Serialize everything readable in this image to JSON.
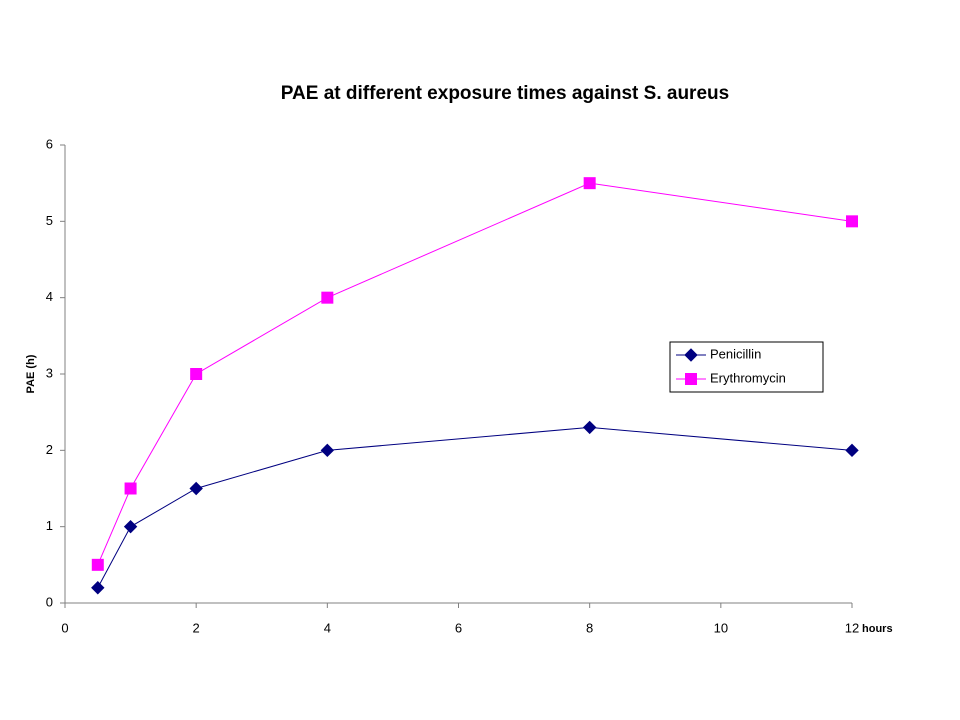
{
  "chart_data": {
    "type": "line",
    "title": "PAE at different exposure times against S. aureus",
    "x_label": "hours",
    "y_label": "PAE (h)",
    "x": [
      0.5,
      1,
      2,
      4,
      8,
      12
    ],
    "series": [
      {
        "name": "Penicillin",
        "color": "#000080",
        "marker": "diamond",
        "values": [
          0.2,
          1,
          1.5,
          2,
          2.3,
          2
        ]
      },
      {
        "name": "Erythromycin",
        "color": "#ff00ff",
        "marker": "square",
        "values": [
          0.5,
          1.5,
          3,
          4,
          5.5,
          5
        ]
      }
    ],
    "xlim": [
      0,
      12
    ],
    "xticks": [
      0,
      2,
      4,
      6,
      8,
      10,
      12
    ],
    "ylim": [
      0,
      6
    ],
    "yticks": [
      0,
      1,
      2,
      3,
      4,
      5,
      6
    ],
    "grid": false,
    "legend": "right"
  }
}
